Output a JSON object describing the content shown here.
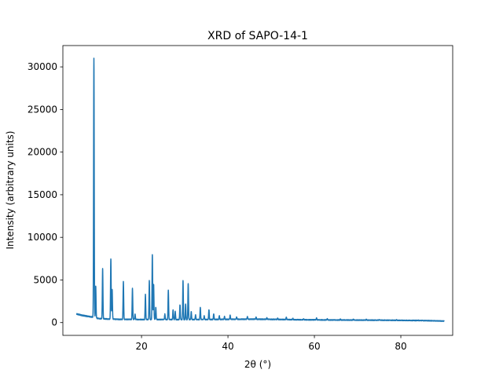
{
  "chart_data": {
    "type": "line",
    "title": "XRD of SAPO-14-1",
    "xlabel": "2θ (°)",
    "ylabel": "Intensity (arbitrary units)",
    "xlim": [
      1.8,
      92.0
    ],
    "ylim": [
      -1500,
      32500
    ],
    "xticks": [
      20,
      40,
      60,
      80
    ],
    "yticks": [
      0,
      5000,
      10000,
      15000,
      20000,
      25000,
      30000
    ],
    "grid": false,
    "legend": "none",
    "series_color": "#1f77b4",
    "baseline": [
      [
        5,
        1000
      ],
      [
        6,
        880
      ],
      [
        7,
        780
      ],
      [
        8,
        700
      ],
      [
        8.7,
        640
      ],
      [
        10,
        480
      ],
      [
        12,
        420
      ],
      [
        15,
        380
      ],
      [
        20,
        360
      ],
      [
        25,
        360
      ],
      [
        30,
        350
      ],
      [
        35,
        360
      ],
      [
        40,
        380
      ],
      [
        45,
        400
      ],
      [
        50,
        380
      ],
      [
        55,
        340
      ],
      [
        60,
        320
      ],
      [
        65,
        300
      ],
      [
        70,
        290
      ],
      [
        75,
        280
      ],
      [
        80,
        260
      ],
      [
        85,
        240
      ],
      [
        90,
        180
      ]
    ],
    "peaks": [
      [
        8.98,
        31000
      ],
      [
        9.4,
        4300
      ],
      [
        11.0,
        6300
      ],
      [
        12.9,
        7500
      ],
      [
        13.2,
        3900
      ],
      [
        15.8,
        4800
      ],
      [
        17.9,
        4000
      ],
      [
        18.5,
        1000
      ],
      [
        20.9,
        3300
      ],
      [
        21.8,
        4900
      ],
      [
        22.5,
        8000
      ],
      [
        22.8,
        4500
      ],
      [
        23.3,
        1800
      ],
      [
        25.4,
        1000
      ],
      [
        26.2,
        3800
      ],
      [
        27.3,
        1500
      ],
      [
        27.8,
        1300
      ],
      [
        28.9,
        2100
      ],
      [
        29.6,
        4900
      ],
      [
        30.2,
        2200
      ],
      [
        30.8,
        4600
      ],
      [
        31.5,
        1300
      ],
      [
        32.5,
        900
      ],
      [
        33.6,
        1800
      ],
      [
        34.5,
        800
      ],
      [
        35.6,
        1500
      ],
      [
        36.7,
        1000
      ],
      [
        38.0,
        800
      ],
      [
        39.2,
        700
      ],
      [
        40.5,
        900
      ],
      [
        42.0,
        650
      ],
      [
        44.5,
        700
      ],
      [
        46.5,
        650
      ],
      [
        49.0,
        550
      ],
      [
        51.5,
        500
      ],
      [
        53.5,
        600
      ],
      [
        55.0,
        500
      ],
      [
        57.5,
        420
      ],
      [
        60.5,
        520
      ],
      [
        63.0,
        440
      ],
      [
        66.0,
        400
      ],
      [
        69.0,
        380
      ],
      [
        72.0,
        380
      ],
      [
        75.0,
        340
      ],
      [
        79.0,
        320
      ],
      [
        84.0,
        290
      ]
    ]
  }
}
